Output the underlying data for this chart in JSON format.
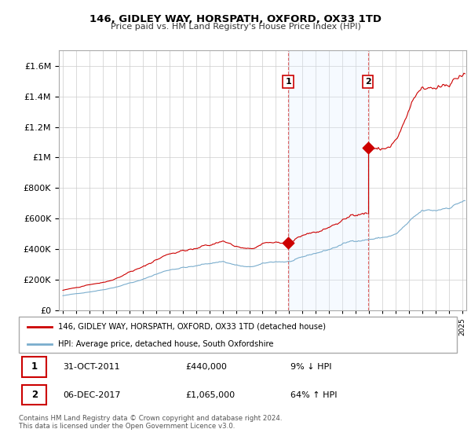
{
  "title": "146, GIDLEY WAY, HORSPATH, OXFORD, OX33 1TD",
  "subtitle": "Price paid vs. HM Land Registry's House Price Index (HPI)",
  "red_line_color": "#cc0000",
  "blue_line_color": "#7aadcd",
  "fill_color": "#ddeeff",
  "sale1_x": 2011.92,
  "sale1_y": 440000,
  "sale2_x": 2017.92,
  "sale2_y": 1065000,
  "sale1_label": "1",
  "sale2_label": "2",
  "sale1_date": "31-OCT-2011",
  "sale1_price": "£440,000",
  "sale1_hpi": "9% ↓ HPI",
  "sale2_date": "06-DEC-2017",
  "sale2_price": "£1,065,000",
  "sale2_hpi": "64% ↑ HPI",
  "legend_red_label": "146, GIDLEY WAY, HORSPATH, OXFORD, OX33 1TD (detached house)",
  "legend_blue_label": "HPI: Average price, detached house, South Oxfordshire",
  "footer": "Contains HM Land Registry data © Crown copyright and database right 2024.\nThis data is licensed under the Open Government Licence v3.0.",
  "ylim": [
    0,
    1700000
  ],
  "xlim_start": 1995.0,
  "xlim_end": 2025.3,
  "grid_color": "#cccccc",
  "bg_color": "#f0f5fa"
}
